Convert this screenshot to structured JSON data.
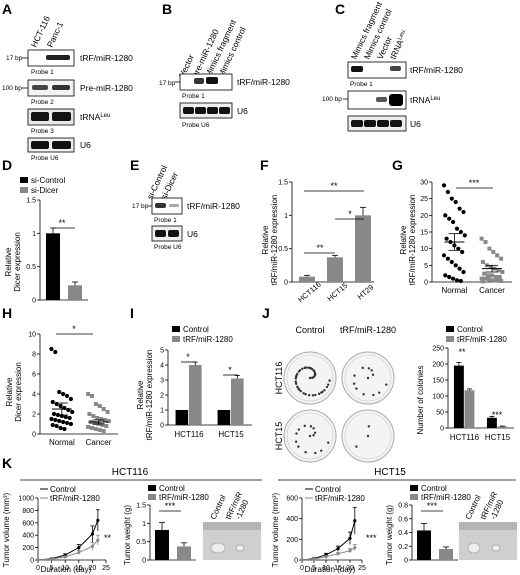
{
  "panels": {
    "A": {
      "letter": "A",
      "columns": [
        "HCT-116",
        "Panc-1"
      ],
      "rows": [
        {
          "size": "17 bp",
          "label": "tRF/miR-1280",
          "probe": "Probe 1"
        },
        {
          "size": "100 bp",
          "label": "Pre-miR-1280",
          "probe": "Probe 2"
        },
        {
          "size": "",
          "label": "tRNA",
          "label_sup": "Leu",
          "probe": "Probe 3"
        },
        {
          "size": "",
          "label": "U6",
          "probe": "Probe U6"
        }
      ]
    },
    "B": {
      "letter": "B",
      "columns": [
        "Vector",
        "pre-miR-1280",
        "Mimics fragment",
        "Mimics control"
      ],
      "rows": [
        {
          "size": "17 bp",
          "label": "tRF/miR-1280",
          "probe": "Probe 1"
        },
        {
          "size": "",
          "label": "U6",
          "probe": "Probe U6"
        }
      ]
    },
    "C": {
      "letter": "C",
      "columns": [
        "Mimics fragment",
        "Mimics control",
        "Vector",
        "tRNA"
      ],
      "column_sup": "Leu",
      "rows": [
        {
          "size": "",
          "label": "tRF/miR-1280",
          "probe": "Probe 1"
        },
        {
          "size": "100 bp",
          "label": "tRNA",
          "label_sup": "Leu",
          "probe": ""
        },
        {
          "size": "",
          "label": "U6",
          "probe": ""
        }
      ]
    },
    "D": {
      "letter": "D",
      "legend": [
        "si-Control",
        "si-Dicer"
      ],
      "ylabel": [
        "Relative",
        "Dicer expression"
      ],
      "sig": "**"
    },
    "E": {
      "letter": "E",
      "columns": [
        "si-Control",
        "si-Dicer"
      ],
      "rows": [
        {
          "size": "17 bp",
          "label": "tRF/miR-1280",
          "probe": "Probe 1"
        },
        {
          "size": "",
          "label": "U6",
          "probe": "Probe U6"
        }
      ]
    },
    "F": {
      "letter": "F",
      "ylabel": [
        "Relative",
        "tRF/miR-1280 expression"
      ],
      "sig": [
        "**",
        "**",
        "*"
      ]
    },
    "G": {
      "letter": "G",
      "ylabel": [
        "Relative",
        "tRF/miR-1280 expression"
      ],
      "sig": "***"
    },
    "H": {
      "letter": "H",
      "ylabel": [
        "Relative",
        "Dicer expression"
      ],
      "sig": "*"
    },
    "I": {
      "letter": "I",
      "ylabel": [
        "Relative",
        "tRF/miR-1280 expression"
      ],
      "legend": [
        "Control",
        "tRF/miR-1280"
      ],
      "sig": [
        "*",
        "*"
      ]
    },
    "J": {
      "letter": "J",
      "col_labels": [
        "Control",
        "tRF/miR-1280"
      ],
      "row_labels": [
        "HCT116",
        "HCT15"
      ],
      "legend": [
        "Control",
        "tRF/miR-1280"
      ],
      "ylabel": "Number of colonies",
      "sig": [
        "**",
        "***"
      ]
    },
    "K": {
      "letter": "K",
      "groups": [
        "HCT116",
        "HCT15"
      ],
      "line_ylabel": "Tumor volume (mm³)",
      "line_xlabel": "Duration (day)",
      "bar_ylabel": "Tumor weight (g)",
      "legend": [
        "Control",
        "tRF/miR-1280"
      ],
      "photo_labels": [
        "Control",
        "tRF/miR",
        "-1280"
      ],
      "line_sig": "**",
      "line_sig_2": "***",
      "bar_sig": "***"
    }
  },
  "chart_data": [
    {
      "panel": "D",
      "type": "bar",
      "categories": [
        "si-Control",
        "si-Dicer"
      ],
      "values": [
        1.0,
        0.22
      ],
      "errors": [
        0.08,
        0.05
      ],
      "ylim": [
        0,
        1.5
      ],
      "yticks": [
        0,
        0.5,
        1.0,
        1.5
      ]
    },
    {
      "panel": "F",
      "type": "bar",
      "categories": [
        "HCT116",
        "HCT15",
        "HT29"
      ],
      "values": [
        0.08,
        0.37,
        1.0
      ],
      "errors": [
        0.02,
        0.03,
        0.12
      ],
      "ylim": [
        0,
        1.5
      ],
      "yticks": [
        0,
        0.5,
        1.0,
        1.5
      ]
    },
    {
      "panel": "G",
      "type": "scatter",
      "categories": [
        "Normal",
        "Cancer"
      ],
      "means": [
        12,
        4
      ],
      "sems": [
        2.5,
        1
      ],
      "ylim": [
        0,
        30
      ],
      "yticks": [
        0,
        5,
        10,
        15,
        20,
        25,
        30
      ],
      "points": [
        [
          29,
          27,
          25,
          24,
          22,
          21,
          20,
          19,
          18,
          16,
          15,
          14,
          13,
          12,
          11,
          10,
          9,
          8,
          7,
          6,
          5,
          4,
          3,
          2,
          1.5,
          1,
          0.5,
          0.3
        ],
        [
          13,
          12,
          10,
          9,
          8,
          7,
          6,
          5,
          4.5,
          4,
          3.5,
          3,
          2.5,
          2,
          2,
          1.5,
          1.5,
          1,
          1,
          0.8,
          0.5,
          0.5,
          0.3,
          0.2
        ]
      ]
    },
    {
      "panel": "H",
      "type": "scatter",
      "categories": [
        "Normal",
        "Cancer"
      ],
      "means": [
        2.5,
        1.2
      ],
      "sems": [
        0.6,
        0.2
      ],
      "ylim": [
        0,
        10
      ],
      "yticks": [
        0,
        2,
        4,
        6,
        8,
        10
      ],
      "points": [
        [
          8.5,
          8.2,
          4.2,
          4.0,
          3.8,
          3.5,
          3.2,
          3.0,
          2.8,
          2.6,
          2.4,
          2.2,
          2.0,
          1.9,
          1.8,
          1.7,
          1.6,
          1.5,
          1.4,
          1.3,
          1.2,
          1.1,
          1.0,
          0.9,
          0.8,
          0.6,
          0.5
        ],
        [
          4.0,
          3.8,
          3.0,
          2.8,
          2.5,
          2.2,
          2.0,
          1.8,
          1.6,
          1.5,
          1.4,
          1.3,
          1.2,
          1.1,
          1.0,
          0.9,
          0.8,
          0.7,
          0.6,
          0.5,
          0.4,
          0.3
        ]
      ]
    },
    {
      "panel": "I",
      "type": "bar",
      "categories": [
        "HCT116",
        "HCT15"
      ],
      "series": [
        {
          "name": "Control",
          "values": [
            1,
            1
          ],
          "errors": [
            0,
            0
          ]
        },
        {
          "name": "tRF/miR-1280",
          "values": [
            4.0,
            3.1
          ],
          "errors": [
            0.2,
            0.2
          ]
        }
      ],
      "ylim": [
        0,
        5
      ],
      "yticks": [
        0,
        1,
        2,
        3,
        4,
        5
      ]
    },
    {
      "panel": "J",
      "type": "bar",
      "categories": [
        "HCT116",
        "HCT15"
      ],
      "series": [
        {
          "name": "Control",
          "values": [
            195,
            32
          ],
          "errors": [
            10,
            4
          ]
        },
        {
          "name": "tRF/miR-1280",
          "values": [
            118,
            5
          ],
          "errors": [
            4,
            1
          ]
        }
      ],
      "ylim": [
        0,
        250
      ],
      "yticks": [
        0,
        50,
        100,
        150,
        200,
        250
      ]
    },
    {
      "panel": "K-HCT116-volume",
      "type": "line",
      "x": [
        0,
        5,
        10,
        15,
        20,
        22
      ],
      "series": [
        {
          "name": "Control",
          "values": [
            0,
            20,
            80,
            200,
            420,
            640
          ],
          "errors": [
            0,
            10,
            20,
            50,
            130,
            170
          ]
        },
        {
          "name": "tRF/miR-1280",
          "values": [
            0,
            15,
            50,
            120,
            220,
            320
          ],
          "errors": [
            0,
            5,
            15,
            30,
            60,
            80
          ]
        }
      ],
      "xlim": [
        0,
        25
      ],
      "xticks": [
        0,
        5,
        10,
        15,
        20,
        25
      ],
      "ylim": [
        0,
        1000
      ],
      "yticks": [
        0,
        200,
        400,
        600,
        800,
        1000
      ]
    },
    {
      "panel": "K-HCT116-weight",
      "type": "bar",
      "categories": [
        "Control",
        "tRF/miR-1280"
      ],
      "values": [
        0.82,
        0.37
      ],
      "errors": [
        0.2,
        0.1
      ],
      "ylim": [
        0,
        1.5
      ],
      "yticks": [
        0,
        0.5,
        1.0,
        1.5
      ]
    },
    {
      "panel": "K-HCT15-volume",
      "type": "line",
      "x": [
        0,
        5,
        10,
        15,
        20,
        22
      ],
      "series": [
        {
          "name": "Control",
          "values": [
            0,
            15,
            50,
            110,
            210,
            380
          ],
          "errors": [
            0,
            5,
            15,
            25,
            60,
            130
          ]
        },
        {
          "name": "tRF/miR-1280",
          "values": [
            0,
            10,
            30,
            60,
            90,
            120
          ],
          "errors": [
            0,
            5,
            10,
            15,
            20,
            30
          ]
        }
      ],
      "xlim": [
        0,
        25
      ],
      "xticks": [
        0,
        5,
        10,
        15,
        20,
        25
      ],
      "ylim": [
        0,
        600
      ],
      "yticks": [
        0,
        200,
        400,
        600
      ]
    },
    {
      "panel": "K-HCT15-weight",
      "type": "bar",
      "categories": [
        "Control",
        "tRF/miR-1280"
      ],
      "values": [
        0.43,
        0.16
      ],
      "errors": [
        0.1,
        0.03
      ],
      "ylim": [
        0,
        0.8
      ],
      "yticks": [
        0,
        0.2,
        0.4,
        0.6,
        0.8
      ]
    }
  ]
}
